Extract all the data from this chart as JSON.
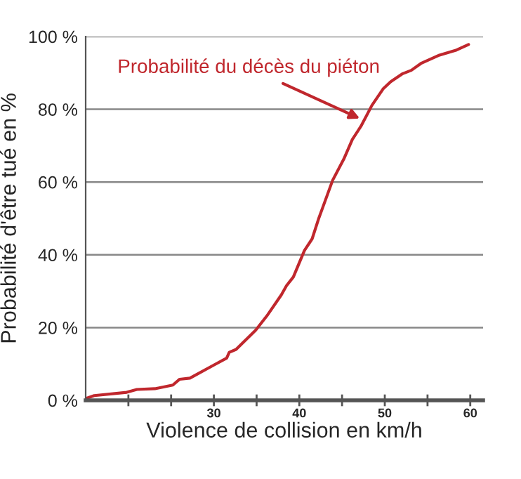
{
  "chart_data": {
    "type": "line",
    "xlabel": "Violence de collision en km/h",
    "ylabel": "Probabilité d'être tué en %",
    "series": [
      {
        "color": "#c0272d",
        "x": [
          15,
          16,
          19.8,
          21,
          23.1,
          25.2,
          26,
          27.2,
          30,
          31.5,
          31.8,
          32.6,
          34.9,
          36.2,
          37.9,
          38.5,
          39.3,
          40.6,
          41.5,
          42.3,
          42.8,
          43.9,
          45.2,
          46.2,
          47.2,
          48.5,
          49.8,
          50.7,
          52.1,
          53.1,
          54.3,
          56.4,
          58.4,
          59.8
        ],
        "values": [
          0.5,
          1.3,
          2.2,
          3,
          3.2,
          4.2,
          5.8,
          6.1,
          9.7,
          11.6,
          13.2,
          14,
          19.3,
          23.2,
          29,
          31.5,
          33.9,
          41.2,
          44.4,
          50.2,
          53.4,
          60.5,
          66.3,
          71.7,
          75.3,
          81.1,
          85.6,
          87.6,
          89.8,
          90.7,
          92.7,
          94.9,
          96.3,
          97.8
        ]
      }
    ],
    "annotations": [
      {
        "text": "Probabilité du décès du piéton",
        "x": 47.5,
        "y": 77
      }
    ],
    "xlim": [
      15,
      61.5
    ],
    "ylim": [
      0,
      100
    ],
    "xticks": [
      {
        "value": 20,
        "label": null
      },
      {
        "value": 25,
        "label": null
      },
      30,
      {
        "value": 35,
        "label": null
      },
      40,
      {
        "value": 45,
        "label": null
      },
      50,
      {
        "value": 55,
        "label": null
      },
      60
    ],
    "yticks": [
      {
        "value": 0,
        "label": "0 %"
      },
      {
        "value": 20,
        "label": "20 %"
      },
      {
        "value": 40,
        "label": "40 %"
      },
      {
        "value": 60,
        "label": "60 %"
      },
      {
        "value": 80,
        "label": "80 %"
      },
      {
        "value": 100,
        "label": "100 %"
      }
    ],
    "grid": "y",
    "marker": "none",
    "line_style": "solid"
  }
}
